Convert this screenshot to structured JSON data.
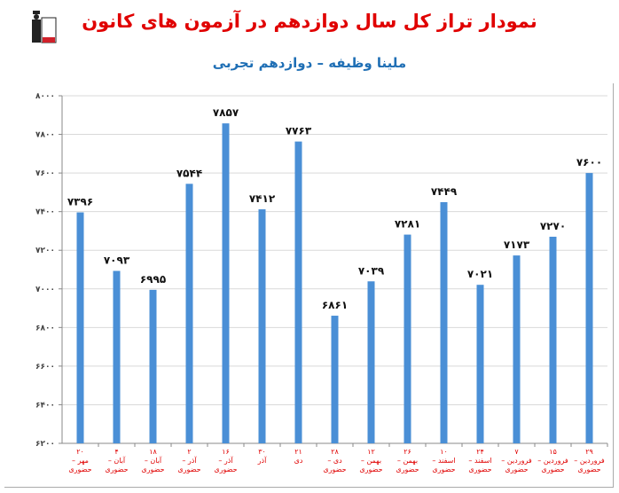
{
  "chart_data": {
    "type": "bar",
    "title": "نمودار تراز کل سال دوازدهم در آزمون های کانون",
    "subtitle": "ملینا وظیفه – دوازدهم تجربی",
    "categories": [
      [
        "۲۰ مهر –",
        "حضوری"
      ],
      [
        "۴ آبان –",
        "حضوری"
      ],
      [
        "۱۸ آبان –",
        "حضوری"
      ],
      [
        "۲ آذر –",
        "حضوری"
      ],
      [
        "۱۶ آذر –",
        "حضوری"
      ],
      [
        "۳۰ آذر",
        ""
      ],
      [
        "۲۱ دی",
        ""
      ],
      [
        "۲۸ دی –",
        "حضوری"
      ],
      [
        "۱۲ بهمن –",
        "حضوری"
      ],
      [
        "۲۶ بهمن –",
        "حضوری"
      ],
      [
        "۱۰ اسفند –",
        "حضوری"
      ],
      [
        "۲۴ اسفند –",
        "حضوری"
      ],
      [
        "۷ فروردین –",
        "حضوری"
      ],
      [
        "۱۵ فروردین –",
        "حضوری"
      ],
      [
        "۲۹ فروردین –",
        "حضوری"
      ]
    ],
    "values": [
      7396,
      7093,
      6995,
      7544,
      7857,
      7412,
      7763,
      6861,
      7039,
      7281,
      7449,
      7021,
      7173,
      7270,
      7600
    ],
    "value_labels": [
      "۷۳۹۶",
      "۷۰۹۳",
      "۶۹۹۵",
      "۷۵۴۴",
      "۷۸۵۷",
      "۷۴۱۲",
      "۷۷۶۳",
      "۶۸۶۱",
      "۷۰۳۹",
      "۷۲۸۱",
      "۷۴۴۹",
      "۷۰۲۱",
      "۷۱۷۳",
      "۷۲۷۰",
      "۷۶۰۰"
    ],
    "yticks": [
      6200,
      6400,
      6600,
      6800,
      7000,
      7200,
      7400,
      7600,
      7800,
      8000
    ],
    "ytick_labels": [
      "۶۲۰۰",
      "۶۴۰۰",
      "۶۶۰۰",
      "۶۸۰۰",
      "۷۰۰۰",
      "۷۲۰۰",
      "۷۴۰۰",
      "۷۶۰۰",
      "۷۸۰۰",
      "۸۰۰۰"
    ],
    "ylim": [
      6200,
      8000
    ],
    "grid": true,
    "bar_color": "#4a8fd6",
    "label_color": "#e00000"
  }
}
